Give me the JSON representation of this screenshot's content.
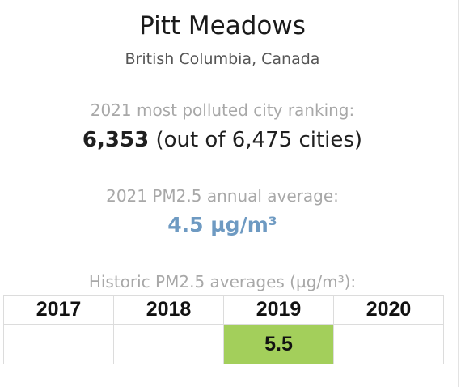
{
  "city": {
    "name": "Pitt Meadows",
    "region": "British Columbia, Canada"
  },
  "ranking": {
    "label": "2021 most polluted city ranking:",
    "rank": "6,353",
    "out_of": "(out of 6,475 cities)"
  },
  "pm_average": {
    "label": "2021 PM2.5 annual average:",
    "value": "4.5 µg/m³",
    "color": "#6e9ac2"
  },
  "historic": {
    "label": "Historic PM2.5 averages (µg/m³):",
    "columns": [
      {
        "year": "2017",
        "value": "",
        "color": ""
      },
      {
        "year": "2018",
        "value": "",
        "color": ""
      },
      {
        "year": "2019",
        "value": "5.5",
        "color": "#a3cf5b"
      },
      {
        "year": "2020",
        "value": "",
        "color": ""
      }
    ]
  }
}
